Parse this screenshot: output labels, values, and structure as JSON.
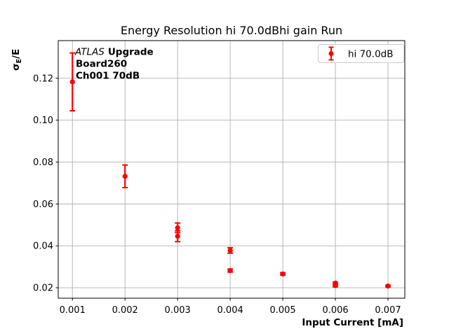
{
  "figure": {
    "title": "Energy Resolution hi 70.0dBhi gain Run",
    "xlabel": "Input Current [mA]",
    "ylabel": {
      "sigma": "σ",
      "subscript": "E",
      "rest": "/E"
    },
    "annotation": {
      "experiment": "ATLAS",
      "line1_rest": "Upgrade",
      "line2": "Board260",
      "line3": "Ch001 70dB"
    },
    "legend": {
      "entries": [
        {
          "label": "hi 70.0dB",
          "marker": "errorbar-point-icon",
          "color": "#ff0000"
        }
      ]
    }
  },
  "colors": {
    "series": "#ff0000",
    "grid": "#b0b0b0",
    "frame": "#000000",
    "legend_border": "#cccccc",
    "background": "#ffffff"
  },
  "chart_data": {
    "type": "scatter",
    "title": "Energy Resolution hi 70.0dBhi gain Run",
    "xlabel": "Input Current [mA]",
    "ylabel": "sigma_E / E",
    "xlim": [
      0.00073,
      0.00732
    ],
    "ylim": [
      0.015,
      0.138
    ],
    "xticks": [
      0.001,
      0.002,
      0.003,
      0.004,
      0.005,
      0.006,
      0.007
    ],
    "xtick_labels": [
      "0.001",
      "0.002",
      "0.003",
      "0.004",
      "0.005",
      "0.006",
      "0.007"
    ],
    "yticks": [
      0.02,
      0.04,
      0.06,
      0.08,
      0.1,
      0.12
    ],
    "ytick_labels": [
      "0.02",
      "0.04",
      "0.06",
      "0.08",
      "0.10",
      "0.12"
    ],
    "grid": true,
    "legend_position": "upper right",
    "series": [
      {
        "name": "hi 70.0dB",
        "color": "#ff0000",
        "marker": "circle",
        "points": [
          {
            "x": 0.001,
            "y": 0.1183,
            "yerr": 0.0138
          },
          {
            "x": 0.002,
            "y": 0.0732,
            "yerr": 0.0054
          },
          {
            "x": 0.003,
            "y": 0.0486,
            "yerr": 0.0023
          },
          {
            "x": 0.003,
            "y": 0.0446,
            "yerr": 0.0026
          },
          {
            "x": 0.004,
            "y": 0.0378,
            "yerr": 0.0013
          },
          {
            "x": 0.004,
            "y": 0.0282,
            "yerr": 0.0007
          },
          {
            "x": 0.005,
            "y": 0.0266,
            "yerr": 0.0006
          },
          {
            "x": 0.006,
            "y": 0.0222,
            "yerr": 0.0005
          },
          {
            "x": 0.006,
            "y": 0.021,
            "yerr": 0.0005
          },
          {
            "x": 0.007,
            "y": 0.0208,
            "yerr": 0.0004
          }
        ]
      }
    ]
  }
}
